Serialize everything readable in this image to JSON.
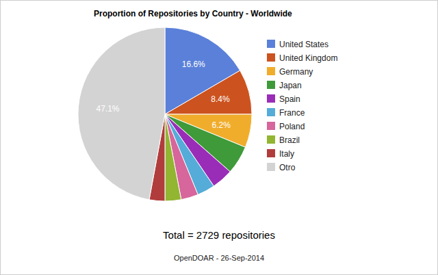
{
  "chart_data": {
    "type": "pie",
    "title": "Proportion of Repositories by Country - Worldwide",
    "categories": [
      "United States",
      "United Kingdom",
      "Germany",
      "Japan",
      "Spain",
      "France",
      "Poland",
      "Brazil",
      "Italy",
      "Otro"
    ],
    "values": [
      16.6,
      8.4,
      6.2,
      5.3,
      4.0,
      3.3,
      3.2,
      3.0,
      2.9,
      47.1
    ],
    "value_labels": [
      "16.6%",
      "8.4%",
      "6.2%",
      null,
      null,
      null,
      null,
      null,
      null,
      "47.1%"
    ],
    "colors": [
      "#5a80d9",
      "#cc531f",
      "#f0ad2c",
      "#3f9a3a",
      "#9a2db7",
      "#55acd8",
      "#d6669b",
      "#92b532",
      "#b13c3c",
      "#d3d3d3"
    ],
    "data_labels": true,
    "legend": "right",
    "annotations": [
      "Total = 2729 repositories",
      "OpenDOAR - 26-Sep-2014"
    ]
  }
}
